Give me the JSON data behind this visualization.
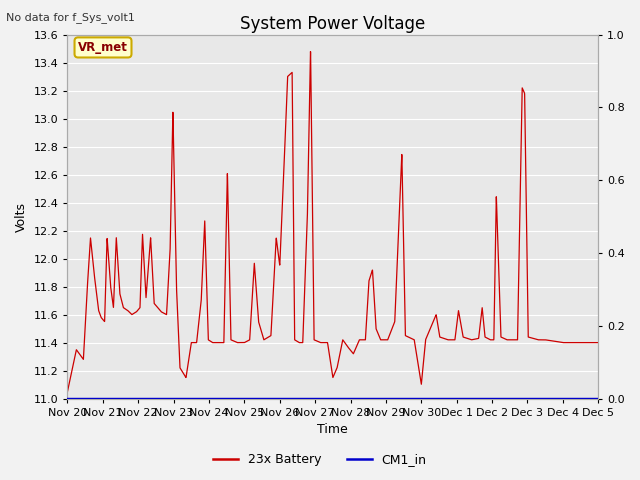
{
  "title": "System Power Voltage",
  "top_left_text": "No data for f_Sys_volt1",
  "xlabel": "Time",
  "ylabel": "Volts",
  "ylim_left": [
    11.0,
    13.6
  ],
  "ylim_right": [
    0.0,
    1.0
  ],
  "yticks_left": [
    11.0,
    11.2,
    11.4,
    11.6,
    11.8,
    12.0,
    12.2,
    12.4,
    12.6,
    12.8,
    13.0,
    13.2,
    13.4,
    13.6
  ],
  "yticks_right": [
    0.0,
    0.2,
    0.4,
    0.6,
    0.8,
    1.0
  ],
  "xtick_labels": [
    "Nov 20",
    "Nov 21",
    "Nov 22",
    "Nov 23",
    "Nov 24",
    "Nov 25",
    "Nov 26",
    "Nov 27",
    "Nov 28",
    "Nov 29",
    "Nov 30",
    "Dec 1",
    "Dec 2",
    "Dec 3",
    "Dec 4",
    "Dec 5"
  ],
  "plot_bg_color": "#e8e8e8",
  "fig_bg_color": "#f2f2f2",
  "grid_color": "#ffffff",
  "line_color_battery": "#cc0000",
  "line_color_cm1": "#0000cc",
  "legend_battery": "23x Battery",
  "legend_cm1": "CM1_in",
  "annotation_label": "VR_met",
  "annotation_bg_color": "#ffffcc",
  "annotation_border_color": "#ccaa00",
  "annotation_text_color": "#880000",
  "title_fontsize": 12,
  "label_fontsize": 9,
  "tick_fontsize": 8,
  "legend_fontsize": 9
}
